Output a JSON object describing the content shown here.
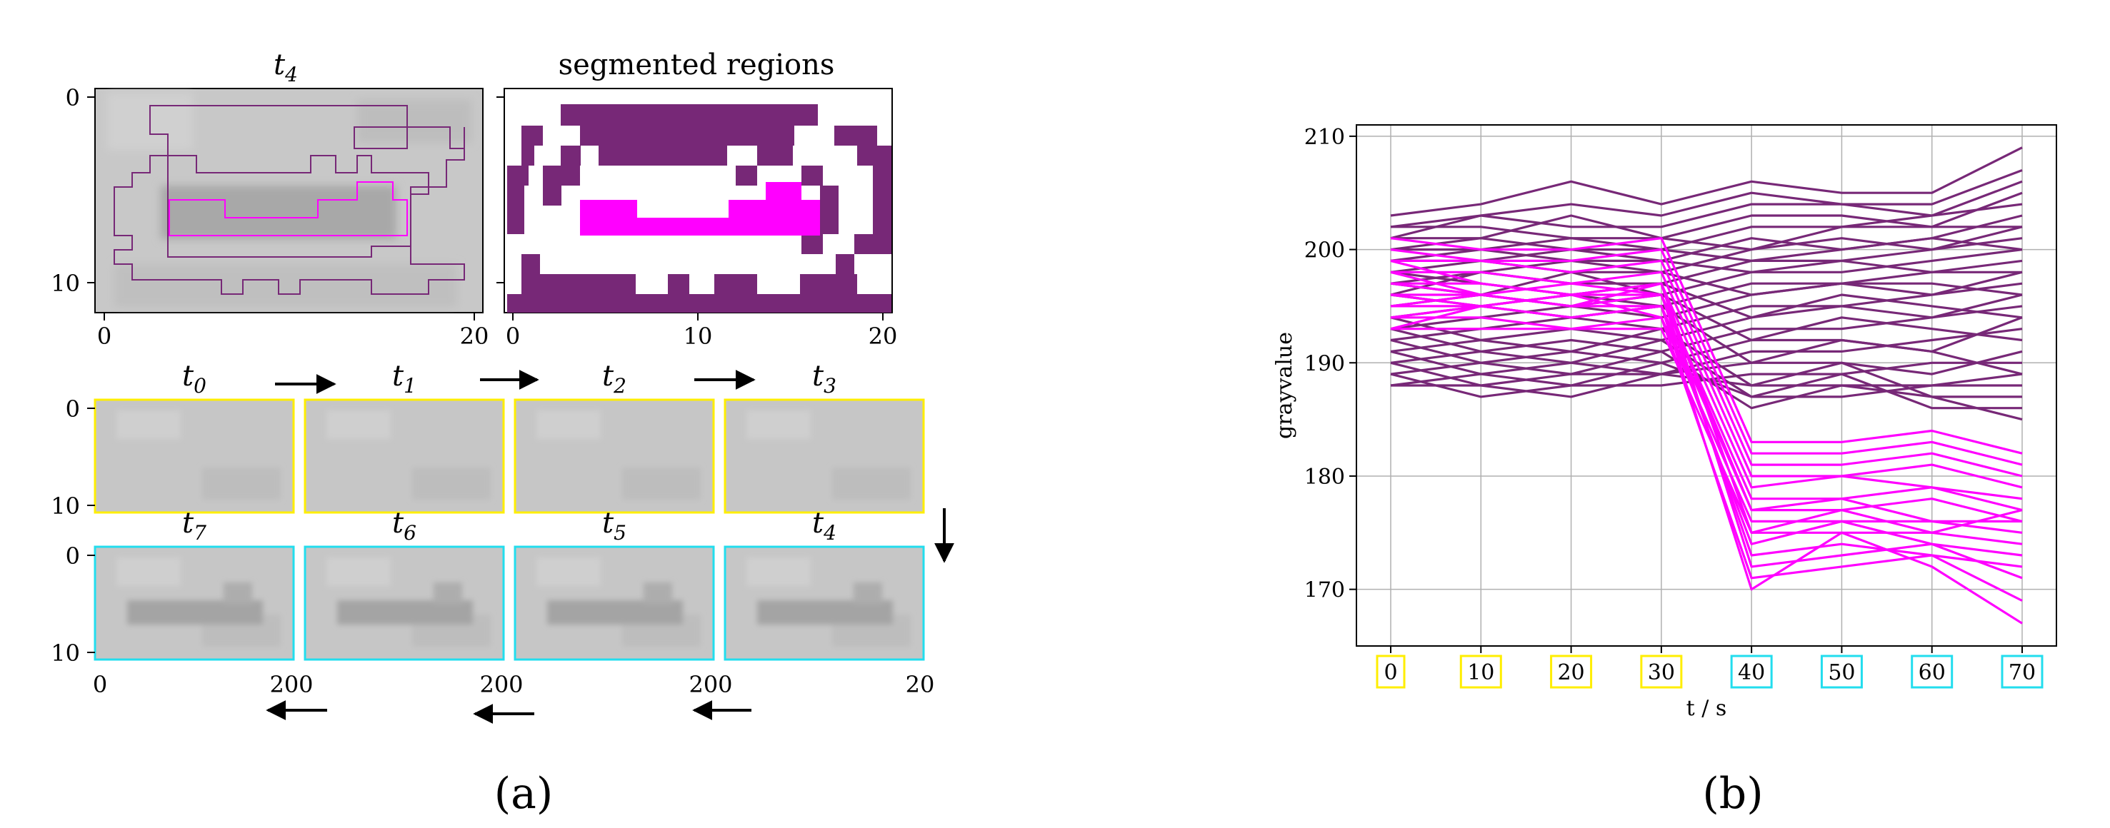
{
  "panel_a": {
    "caption": "(a)",
    "top_left": {
      "title": "t",
      "title_sub": "4",
      "ytick_labels": [
        "0",
        "10"
      ],
      "xtick_labels": [
        "0",
        "20"
      ]
    },
    "top_right": {
      "title": "segmented regions",
      "xtick_labels": [
        "0",
        "10",
        "20"
      ]
    },
    "strip_ytick_labels": [
      "0",
      "10"
    ],
    "strip_xtick_labels": [
      "0",
      "200",
      "200",
      "200",
      "20"
    ],
    "row1_labels": [
      {
        "t": "t",
        "s": "0"
      },
      {
        "t": "t",
        "s": "1"
      },
      {
        "t": "t",
        "s": "2"
      },
      {
        "t": "t",
        "s": "3"
      }
    ],
    "row2_labels": [
      {
        "t": "t",
        "s": "7"
      },
      {
        "t": "t",
        "s": "6"
      },
      {
        "t": "t",
        "s": "5"
      },
      {
        "t": "t",
        "s": "4"
      }
    ]
  },
  "panel_b": {
    "caption": "(b)"
  },
  "colors": {
    "region_dark": "#772877",
    "region_bright": "#ff00ff",
    "early_frame_border": "#ffee00",
    "late_frame_border": "#22ddee",
    "grid": "#b0b0b0"
  },
  "chart_data": {
    "type": "line",
    "xlabel": "t / s",
    "ylabel": "grayvalue",
    "x": [
      0,
      10,
      20,
      30,
      40,
      50,
      60,
      70
    ],
    "xtick_labels": [
      "0",
      "10",
      "20",
      "30",
      "40",
      "50",
      "60",
      "70"
    ],
    "xtick_box_colors": [
      "yellow",
      "yellow",
      "yellow",
      "yellow",
      "cyan",
      "cyan",
      "cyan",
      "cyan"
    ],
    "ylim": [
      165,
      211
    ],
    "yticks": [
      170,
      180,
      190,
      200,
      210
    ],
    "grid": true,
    "series_groups": [
      {
        "color": "#772877",
        "lines": [
          [
            203,
            204,
            206,
            204,
            206,
            205,
            205,
            209
          ],
          [
            202,
            203,
            204,
            203,
            205,
            204,
            204,
            207
          ],
          [
            201,
            203,
            202,
            202,
            204,
            204,
            203,
            206
          ],
          [
            200,
            201,
            203,
            201,
            203,
            203,
            202,
            205
          ],
          [
            199,
            200,
            201,
            200,
            202,
            202,
            203,
            204
          ],
          [
            198,
            199,
            200,
            199,
            201,
            200,
            201,
            203
          ],
          [
            197,
            198,
            199,
            198,
            200,
            201,
            200,
            202
          ],
          [
            196,
            198,
            197,
            197,
            199,
            199,
            200,
            201
          ],
          [
            195,
            196,
            198,
            196,
            198,
            198,
            199,
            200
          ],
          [
            194,
            195,
            196,
            195,
            197,
            197,
            198,
            199
          ],
          [
            193,
            194,
            195,
            194,
            196,
            197,
            196,
            198
          ],
          [
            192,
            193,
            194,
            193,
            195,
            195,
            196,
            197
          ],
          [
            191,
            192,
            193,
            192,
            194,
            195,
            194,
            196
          ],
          [
            190,
            191,
            192,
            191,
            193,
            193,
            194,
            195
          ],
          [
            189,
            190,
            191,
            190,
            192,
            192,
            191,
            194
          ],
          [
            188,
            189,
            190,
            189,
            191,
            191,
            192,
            193
          ],
          [
            188,
            188,
            189,
            189,
            190,
            190,
            189,
            191
          ],
          [
            189,
            187,
            188,
            188,
            189,
            189,
            190,
            190
          ],
          [
            190,
            188,
            187,
            189,
            188,
            188,
            188,
            189
          ],
          [
            191,
            189,
            188,
            190,
            187,
            187,
            188,
            188
          ],
          [
            192,
            190,
            189,
            191,
            186,
            188,
            187,
            187
          ],
          [
            193,
            191,
            190,
            192,
            187,
            189,
            186,
            186
          ],
          [
            194,
            192,
            191,
            193,
            188,
            190,
            187,
            185
          ],
          [
            196,
            195,
            194,
            195,
            190,
            192,
            191,
            189
          ],
          [
            197,
            196,
            195,
            196,
            192,
            194,
            193,
            192
          ],
          [
            198,
            197,
            196,
            197,
            194,
            196,
            195,
            194
          ],
          [
            199,
            199,
            198,
            198,
            196,
            197,
            197,
            196
          ],
          [
            200,
            200,
            199,
            199,
            198,
            199,
            198,
            198
          ],
          [
            201,
            201,
            200,
            200,
            199,
            200,
            201,
            200
          ],
          [
            202,
            202,
            201,
            201,
            200,
            202,
            202,
            202
          ]
        ]
      },
      {
        "color": "#ff00ff",
        "lines": [
          [
            201,
            200,
            200,
            201,
            183,
            183,
            184,
            182
          ],
          [
            200,
            199,
            199,
            200,
            182,
            182,
            183,
            181
          ],
          [
            199,
            199,
            198,
            199,
            181,
            181,
            182,
            180
          ],
          [
            198,
            198,
            197,
            198,
            180,
            180,
            181,
            179
          ],
          [
            197,
            197,
            196,
            197,
            179,
            180,
            179,
            178
          ],
          [
            196,
            196,
            195,
            196,
            178,
            178,
            179,
            177
          ],
          [
            195,
            195,
            194,
            195,
            177,
            177,
            178,
            176
          ],
          [
            194,
            194,
            193,
            194,
            176,
            176,
            176,
            175
          ],
          [
            193,
            193,
            193,
            193,
            175,
            175,
            175,
            174
          ],
          [
            195,
            196,
            195,
            195,
            174,
            176,
            174,
            173
          ],
          [
            196,
            195,
            196,
            196,
            173,
            174,
            173,
            172
          ],
          [
            197,
            196,
            195,
            197,
            172,
            173,
            174,
            171
          ],
          [
            194,
            195,
            196,
            194,
            171,
            172,
            173,
            169
          ],
          [
            193,
            195,
            194,
            195,
            170,
            175,
            172,
            167
          ],
          [
            198,
            196,
            197,
            196,
            177,
            178,
            176,
            176
          ],
          [
            199,
            197,
            196,
            197,
            175,
            177,
            175,
            177
          ]
        ]
      }
    ]
  }
}
